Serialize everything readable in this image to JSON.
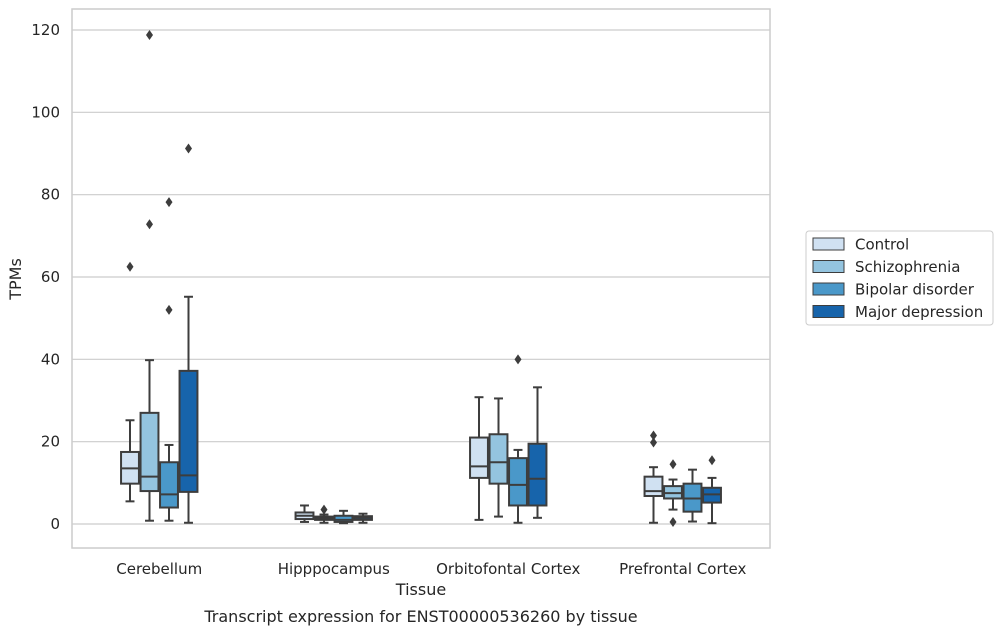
{
  "caption": "Transcript expression for ENST00000536260 by tissue",
  "chart_data": {
    "type": "box",
    "xlabel": "Tissue",
    "ylabel": "TPMs",
    "ylim": [
      -6,
      125
    ],
    "yticks": [
      0,
      20,
      40,
      60,
      80,
      100,
      120
    ],
    "grid": "horizontal",
    "legend_position": "right",
    "categories": [
      "Cerebellum",
      "Hipppocampus",
      "Orbitofontal Cortex",
      "Prefrontal Cortex"
    ],
    "series": [
      {
        "name": "Control",
        "color": "#d0e1f2",
        "boxes": [
          {
            "whislo": 5.5,
            "q1": 9.8,
            "med": 13.5,
            "q3": 17.5,
            "whishi": 25.2,
            "fliers": [
              62.5
            ]
          },
          {
            "whislo": 0.5,
            "q1": 1.2,
            "med": 2.0,
            "q3": 2.8,
            "whishi": 4.5,
            "fliers": []
          },
          {
            "whislo": 1.0,
            "q1": 11.2,
            "med": 14.0,
            "q3": 21.0,
            "whishi": 30.8,
            "fliers": []
          },
          {
            "whislo": 0.3,
            "q1": 6.8,
            "med": 8.0,
            "q3": 11.5,
            "whishi": 13.8,
            "fliers": [
              19.8,
              21.5
            ]
          }
        ]
      },
      {
        "name": "Schizophrenia",
        "color": "#94c4df",
        "boxes": [
          {
            "whislo": 0.8,
            "q1": 8.0,
            "med": 11.5,
            "q3": 27.0,
            "whishi": 39.8,
            "fliers": [
              72.8,
              118.8
            ]
          },
          {
            "whislo": 0.3,
            "q1": 1.0,
            "med": 1.4,
            "q3": 1.8,
            "whishi": 2.3,
            "fliers": [
              3.5
            ]
          },
          {
            "whislo": 1.8,
            "q1": 9.8,
            "med": 15.0,
            "q3": 21.8,
            "whishi": 30.5,
            "fliers": []
          },
          {
            "whislo": 3.5,
            "q1": 6.2,
            "med": 7.5,
            "q3": 9.2,
            "whishi": 10.8,
            "fliers": [
              14.5,
              0.5
            ]
          }
        ]
      },
      {
        "name": "Bipolar disorder",
        "color": "#4a98c9",
        "boxes": [
          {
            "whislo": 0.8,
            "q1": 4.0,
            "med": 7.2,
            "q3": 15.0,
            "whishi": 19.2,
            "fliers": [
              52.0,
              78.2
            ]
          },
          {
            "whislo": 0.2,
            "q1": 0.5,
            "med": 1.0,
            "q3": 2.0,
            "whishi": 3.2,
            "fliers": []
          },
          {
            "whislo": 0.3,
            "q1": 4.5,
            "med": 9.5,
            "q3": 16.0,
            "whishi": 18.0,
            "fliers": [
              40.0
            ]
          },
          {
            "whislo": 0.6,
            "q1": 3.0,
            "med": 6.2,
            "q3": 9.8,
            "whishi": 13.2,
            "fliers": []
          }
        ]
      },
      {
        "name": "Major depression",
        "color": "#1764ab",
        "boxes": [
          {
            "whislo": 0.3,
            "q1": 7.8,
            "med": 11.8,
            "q3": 37.2,
            "whishi": 55.2,
            "fliers": [
              91.2
            ]
          },
          {
            "whislo": 0.3,
            "q1": 1.0,
            "med": 1.5,
            "q3": 1.9,
            "whishi": 2.5,
            "fliers": []
          },
          {
            "whislo": 1.5,
            "q1": 4.5,
            "med": 11.0,
            "q3": 19.5,
            "whishi": 33.2,
            "fliers": []
          },
          {
            "whislo": 0.2,
            "q1": 5.2,
            "med": 7.2,
            "q3": 8.8,
            "whishi": 11.2,
            "fliers": [
              15.5
            ]
          }
        ]
      }
    ]
  }
}
